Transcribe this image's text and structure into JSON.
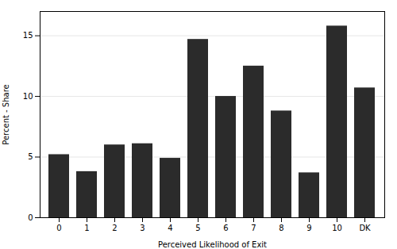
{
  "chart_data": {
    "type": "bar",
    "categories": [
      "0",
      "1",
      "2",
      "3",
      "4",
      "5",
      "6",
      "7",
      "8",
      "9",
      "10",
      "DK"
    ],
    "values": [
      5.2,
      3.8,
      6.0,
      6.1,
      4.9,
      14.7,
      10.0,
      12.5,
      8.8,
      3.7,
      15.8,
      10.7
    ],
    "color": "#2b2b2b",
    "xlabel": "Perceived Likelihood of Exit",
    "ylabel": "Percent - Share",
    "ylim": [
      0,
      17
    ],
    "yticks": [
      0,
      5,
      10,
      15
    ],
    "grid": true
  }
}
